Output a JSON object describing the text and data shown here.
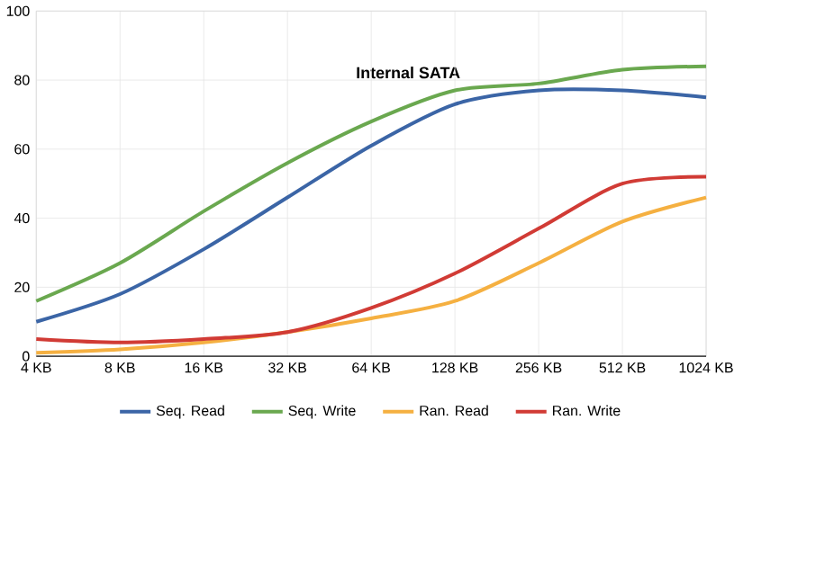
{
  "chart_data": {
    "type": "line",
    "title": "Internal SATA",
    "categories": [
      "4 KB",
      "8 KB",
      "16 KB",
      "32 KB",
      "64 KB",
      "128 KB",
      "256 KB",
      "512 KB",
      "1024 KB"
    ],
    "series": [
      {
        "name": "Seq. Read",
        "color": "#3b65a6",
        "values": [
          10,
          18,
          31,
          46,
          61,
          73,
          77,
          77,
          75
        ]
      },
      {
        "name": "Seq. Write",
        "color": "#6aa84f",
        "values": [
          16,
          27,
          42,
          56,
          68,
          77,
          79,
          83,
          84
        ]
      },
      {
        "name": "Ran. Read",
        "color": "#f5b041",
        "values": [
          1,
          2,
          4,
          7,
          11,
          16,
          27,
          39,
          46
        ]
      },
      {
        "name": "Ran. Write",
        "color": "#d13b35",
        "values": [
          5,
          4,
          5,
          7,
          14,
          24,
          37,
          50,
          52
        ]
      }
    ],
    "ylim": [
      0,
      100
    ],
    "yticks": [
      0,
      20,
      40,
      60,
      80,
      100
    ],
    "grid": true,
    "legend": "bottom",
    "marker": "none",
    "line_style": "solid"
  }
}
